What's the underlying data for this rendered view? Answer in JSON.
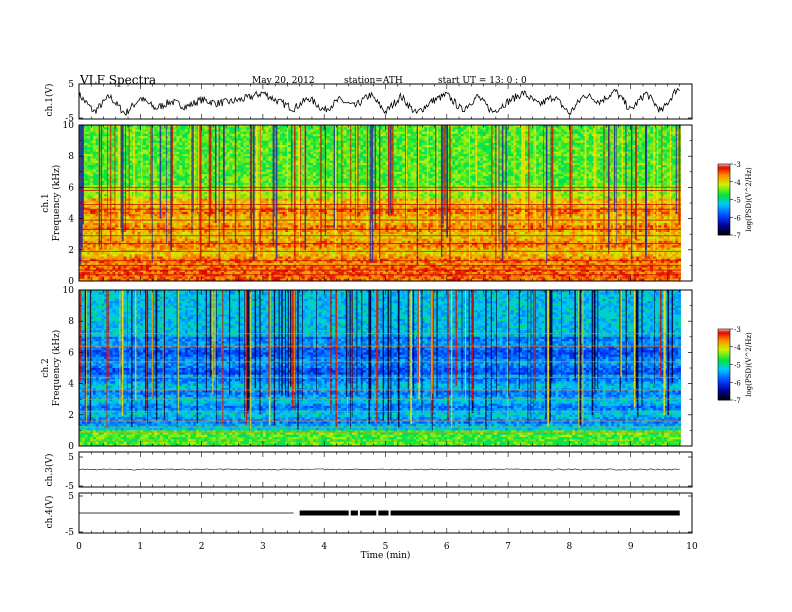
{
  "header": {
    "title": "VLF  Spectra",
    "date": "May 20, 2012",
    "station": "station=ATH",
    "start": "start  UT  =    13: 0   : 0"
  },
  "chart_data": [
    {
      "type": "line",
      "panel": "ch1-waveform",
      "ylabel": "ch.1(V)",
      "ylim": [
        -5,
        5
      ],
      "yticks": [
        "-5",
        "5"
      ],
      "xlim": [
        0,
        10
      ],
      "x": [
        0,
        0.25,
        0.5,
        0.75,
        1,
        1.25,
        1.5,
        1.75,
        2,
        2.25,
        2.5,
        2.75,
        3,
        3.25,
        3.5,
        3.75,
        4,
        4.25,
        4.5,
        4.75,
        5,
        5.25,
        5.5,
        5.75,
        6,
        6.25,
        6.5,
        6.75,
        7,
        7.25,
        7.5,
        7.75,
        8,
        8.25,
        8.5,
        8.75,
        9,
        9.25,
        9.5,
        9.75
      ],
      "values": [
        2,
        -3,
        1.5,
        -3.5,
        1,
        -2,
        0,
        -1.5,
        0.5,
        -0.5,
        0,
        1,
        2.5,
        0,
        -2,
        1,
        -2.5,
        0.5,
        -1.5,
        2,
        -3,
        1.5,
        -3.5,
        0,
        2,
        -2.5,
        1.5,
        -3,
        0,
        2.5,
        -1,
        1.5,
        -3.5,
        2,
        0,
        3,
        -2.5,
        2.5,
        -3,
        3.5
      ]
    },
    {
      "type": "heatmap",
      "panel": "ch1-spectrogram",
      "ylabel": "Frequency (kHz)",
      "ylabel2": "ch.1",
      "ylim": [
        0,
        10
      ],
      "yticks": [
        "0",
        "2",
        "4",
        "6",
        "8",
        "10"
      ],
      "xlim": [
        0,
        10
      ],
      "colorbar": {
        "label": "log(PSD)(V^2/Hz)",
        "min": -7,
        "max": -3,
        "ticks": [
          "-3",
          "-4",
          "-5",
          "-6",
          "-7"
        ]
      }
    },
    {
      "type": "heatmap",
      "panel": "ch2-spectrogram",
      "ylabel": "Frequency (kHz)",
      "ylabel2": "ch.2",
      "ylim": [
        0,
        10
      ],
      "yticks": [
        "0",
        "2",
        "4",
        "6",
        "8",
        "10"
      ],
      "xlim": [
        0,
        10
      ],
      "colorbar": {
        "label": "log(PSD)(V^2/Hz)",
        "min": -7,
        "max": -3,
        "ticks": [
          "-3",
          "-4",
          "-5",
          "-6",
          "-7"
        ]
      }
    },
    {
      "type": "line",
      "panel": "ch3-waveform",
      "ylabel": "ch.3(V)",
      "ylim": [
        -5,
        5
      ],
      "yticks": [
        "5",
        "-5"
      ],
      "xlim": [
        0,
        10
      ],
      "x": [
        0,
        9.8
      ],
      "values": [
        0,
        0
      ]
    },
    {
      "type": "line",
      "panel": "ch4-waveform",
      "ylabel": "ch.4(V)",
      "ylim": [
        -5,
        5
      ],
      "yticks": [
        "5",
        "-5"
      ],
      "xlim": [
        0,
        10
      ],
      "xlabel": "Time  (min)",
      "xticks": [
        "0",
        "1",
        "2",
        "3",
        "4",
        "5",
        "6",
        "7",
        "8",
        "9",
        "10"
      ],
      "x": [
        0,
        3.5,
        3.6,
        9.8
      ],
      "values": [
        0,
        0,
        0,
        0
      ]
    }
  ]
}
